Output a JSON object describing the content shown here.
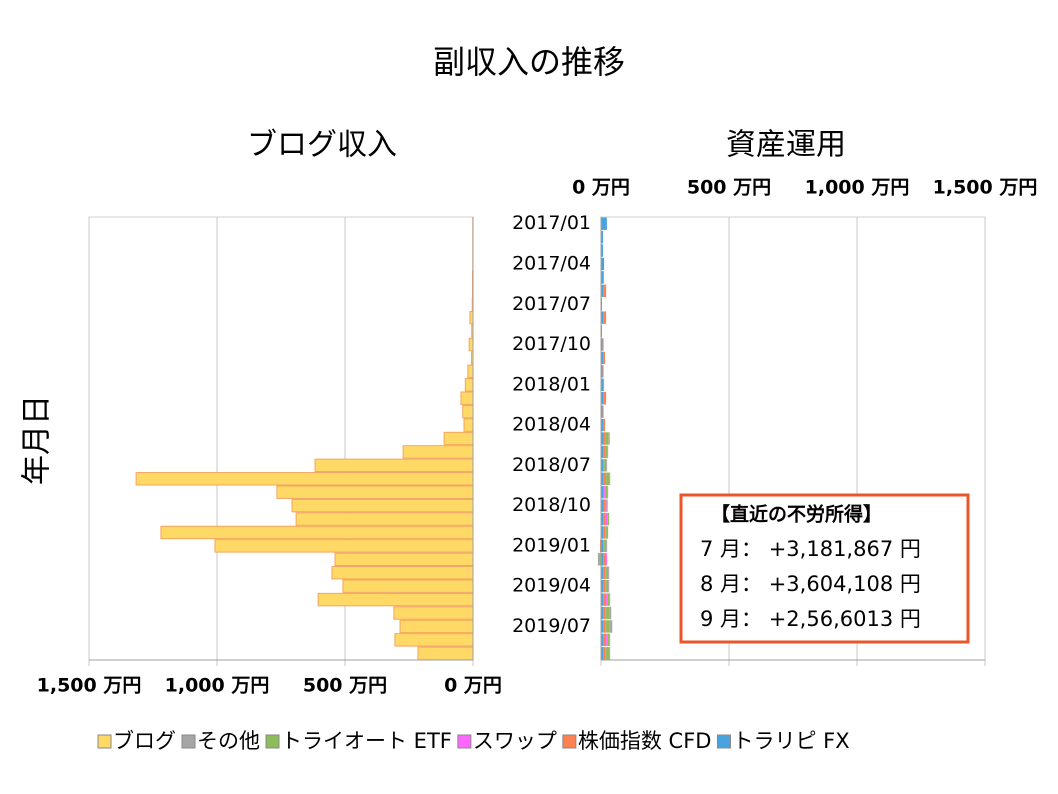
{
  "chart_data": {
    "type": "butterfly",
    "title": "副収入の推移",
    "y_axis_label": "年月日",
    "categories": [
      "2017/01",
      null,
      null,
      "2017/04",
      null,
      null,
      "2017/07",
      null,
      null,
      "2017/10",
      null,
      null,
      "2018/01",
      null,
      null,
      "2018/04",
      null,
      null,
      "2018/07",
      null,
      null,
      "2018/10",
      null,
      null,
      "2019/01",
      null,
      null,
      "2019/04",
      null,
      null,
      "2019/07",
      null,
      null
    ],
    "panels": [
      {
        "title": "ブログ収入",
        "x_reversed": true,
        "xaxis_position": "bottom",
        "xlim": [
          0,
          1500
        ],
        "xticks": [
          {
            "value": 0,
            "label": "0 万円"
          },
          {
            "value": 500,
            "label": "500 万円"
          },
          {
            "value": 1000,
            "label": "1,000 万円"
          },
          {
            "value": 1500,
            "label": "1,500 万円"
          }
        ],
        "series": [
          {
            "name": "ブログ",
            "color": "#ffd966",
            "values": [
              1,
              1,
              1,
              1,
              2,
              2,
              3,
              12,
              5,
              15,
              6,
              20,
              30,
              47,
              40,
              35,
              113,
              273,
              617,
              1316,
              766,
              707,
              691,
              1219,
              1008,
              539,
              551,
              508,
              605,
              309,
              285,
              305,
              215
            ]
          }
        ]
      },
      {
        "title": "資産運用",
        "x_reversed": false,
        "xaxis_position": "top",
        "xlim": [
          0,
          1500
        ],
        "xticks": [
          {
            "value": 0,
            "label": "0 万円"
          },
          {
            "value": 500,
            "label": "500 万円"
          },
          {
            "value": 1000,
            "label": "1,000 万円"
          },
          {
            "value": 1500,
            "label": "1,500 万円"
          }
        ],
        "series": [
          {
            "name": "その他",
            "color": "#a6a6a6",
            "values": [
              0,
              0,
              0,
              0,
              0,
              0,
              0,
              0,
              0,
              0,
              0,
              0,
              0,
              0,
              0,
              0,
              4,
              4,
              4,
              4,
              4,
              0,
              0,
              0,
              4,
              -8,
              4,
              4,
              4,
              8,
              12,
              4,
              4
            ]
          },
          {
            "name": "トライオート ETF",
            "color": "#8fbc5a",
            "values": [
              0,
              0,
              0,
              0,
              0,
              0,
              0,
              0,
              0,
              0,
              0,
              0,
              0,
              0,
              0,
              0,
              12,
              8,
              8,
              12,
              8,
              4,
              8,
              8,
              8,
              -4,
              8,
              8,
              8,
              12,
              12,
              8,
              12
            ]
          },
          {
            "name": "スワップ",
            "color": "#ff66ff",
            "values": [
              0,
              0,
              0,
              0,
              0,
              0,
              0,
              0,
              0,
              0,
              0,
              0,
              0,
              0,
              0,
              0,
              0,
              0,
              0,
              0,
              4,
              4,
              8,
              4,
              4,
              4,
              4,
              4,
              4,
              4,
              4,
              4,
              4
            ]
          },
          {
            "name": "株価指数 CFD",
            "color": "#ff8050",
            "values": [
              0,
              0,
              0,
              0,
              4,
              12,
              0,
              12,
              0,
              4,
              8,
              4,
              4,
              12,
              4,
              8,
              8,
              8,
              4,
              12,
              4,
              8,
              8,
              8,
              -4,
              12,
              8,
              8,
              12,
              8,
              8,
              12,
              8
            ]
          },
          {
            "name": "トラリピ FX",
            "color": "#4aa3df",
            "values": [
              23,
              8,
              8,
              12,
              8,
              8,
              4,
              8,
              4,
              6,
              8,
              6,
              8,
              8,
              6,
              8,
              10,
              8,
              8,
              8,
              8,
              10,
              8,
              8,
              8,
              8,
              8,
              8,
              8,
              8,
              8,
              8,
              8
            ]
          }
        ]
      }
    ],
    "annotation": {
      "title": "【直近の不労所得】",
      "lines": [
        "7 月： +3,181,867 円",
        "8 月： +3,604,108 円",
        "9 月： +2,56,6013 円"
      ]
    },
    "grid": true
  }
}
